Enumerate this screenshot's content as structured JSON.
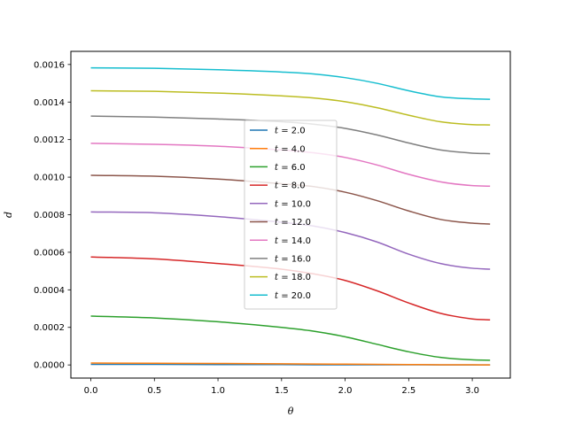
{
  "chart_data": {
    "type": "line",
    "xlabel": "θ",
    "ylabel": "d",
    "xlim": [
      -0.157,
      3.299
    ],
    "ylim": [
      -7e-05,
      0.00167
    ],
    "xticks": [
      0.0,
      0.5,
      1.0,
      1.5,
      2.0,
      2.5,
      3.0
    ],
    "xtick_labels": [
      "0.0",
      "0.5",
      "1.0",
      "1.5",
      "2.0",
      "2.5",
      "3.0"
    ],
    "yticks": [
      0.0,
      0.0002,
      0.0004,
      0.0006,
      0.0008,
      0.001,
      0.0012,
      0.0014,
      0.0016
    ],
    "ytick_labels": [
      "0.0000",
      "0.0002",
      "0.0004",
      "0.0006",
      "0.0008",
      "0.0010",
      "0.0012",
      "0.0014",
      "0.0016"
    ],
    "grid": false,
    "legend_position": "center",
    "x": [
      0.0,
      0.5,
      1.0,
      1.5,
      1.75,
      2.0,
      2.25,
      2.5,
      2.75,
      3.0,
      3.14
    ],
    "series": [
      {
        "name": "t = 2.0",
        "label_var": "t",
        "label_value": "2.0",
        "color": "#1f77b4",
        "values": [
          3e-06,
          3e-06,
          2e-06,
          2e-06,
          1e-06,
          1e-06,
          1e-06,
          1e-06,
          0.0,
          0.0,
          0.0
        ]
      },
      {
        "name": "t = 4.0",
        "label_var": "t",
        "label_value": "4.0",
        "color": "#ff7f0e",
        "values": [
          1e-05,
          9e-06,
          8e-06,
          6e-06,
          5e-06,
          4e-06,
          3e-06,
          2e-06,
          1e-06,
          5e-07,
          3e-07
        ]
      },
      {
        "name": "t = 6.0",
        "label_var": "t",
        "label_value": "6.0",
        "color": "#2ca02c",
        "values": [
          0.00026,
          0.00025,
          0.00023,
          0.0002,
          0.00018,
          0.00015,
          0.00011,
          7e-05,
          4e-05,
          2.7e-05,
          2.5e-05
        ]
      },
      {
        "name": "t = 8.0",
        "label_var": "t",
        "label_value": "8.0",
        "color": "#d62728",
        "values": [
          0.000575,
          0.000565,
          0.00054,
          0.00051,
          0.000485,
          0.00045,
          0.000395,
          0.00033,
          0.000275,
          0.000245,
          0.00024
        ]
      },
      {
        "name": "t = 10.0",
        "label_var": "t",
        "label_value": "10.0",
        "color": "#9467bd",
        "values": [
          0.000815,
          0.00081,
          0.00079,
          0.00076,
          0.00074,
          0.000705,
          0.000655,
          0.00059,
          0.00054,
          0.000515,
          0.00051
        ]
      },
      {
        "name": "t = 12.0",
        "label_var": "t",
        "label_value": "12.0",
        "color": "#8c564b",
        "values": [
          0.00101,
          0.001005,
          0.00099,
          0.000965,
          0.00095,
          0.00092,
          0.000875,
          0.00082,
          0.000775,
          0.000755,
          0.00075
        ]
      },
      {
        "name": "t = 14.0",
        "label_var": "t",
        "label_value": "14.0",
        "color": "#e377c2",
        "values": [
          0.00118,
          0.001175,
          0.001165,
          0.001145,
          0.00113,
          0.001105,
          0.001065,
          0.001015,
          0.000975,
          0.000955,
          0.000952
        ]
      },
      {
        "name": "t = 16.0",
        "label_var": "t",
        "label_value": "16.0",
        "color": "#7f7f7f",
        "values": [
          0.001325,
          0.00132,
          0.00131,
          0.001295,
          0.001282,
          0.00126,
          0.001225,
          0.001182,
          0.001145,
          0.001128,
          0.001125
        ]
      },
      {
        "name": "t = 18.0",
        "label_var": "t",
        "label_value": "18.0",
        "color": "#bcbd22",
        "values": [
          0.00146,
          0.001457,
          0.001448,
          0.001433,
          0.001422,
          0.001402,
          0.00137,
          0.00133,
          0.001295,
          0.00128,
          0.001278
        ]
      },
      {
        "name": "t = 20.0",
        "label_var": "t",
        "label_value": "20.0",
        "color": "#17becf",
        "values": [
          0.001582,
          0.00158,
          0.001572,
          0.00156,
          0.00155,
          0.00153,
          0.0015,
          0.00146,
          0.001428,
          0.001417,
          0.001415
        ]
      }
    ]
  }
}
